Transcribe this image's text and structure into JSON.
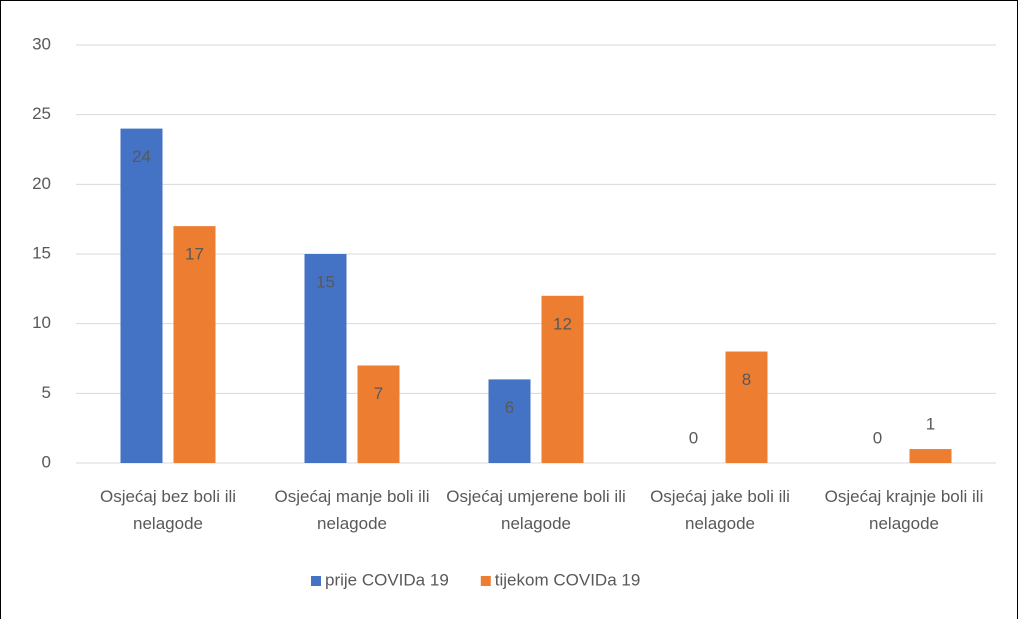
{
  "chart_data": {
    "type": "bar",
    "categories": [
      "Osjećaj bez boli ili nelagode",
      "Osjećaj manje boli ili nelagode",
      "Osjećaj umjerene boli ili nelagode",
      "Osjećaj jake boli ili nelagode",
      "Osjećaj krajnje boli ili nelagode"
    ],
    "series": [
      {
        "name": "prije COVIDa 19",
        "color": "#4472c4",
        "values": [
          24,
          15,
          6,
          0,
          0
        ]
      },
      {
        "name": "tijekom COVIDa 19",
        "color": "#ed7d31",
        "values": [
          17,
          7,
          12,
          8,
          1
        ]
      }
    ],
    "ylim": [
      0,
      30
    ],
    "yticks": [
      0,
      5,
      10,
      15,
      20,
      25,
      30
    ],
    "grid": true,
    "legend": "bottom"
  }
}
